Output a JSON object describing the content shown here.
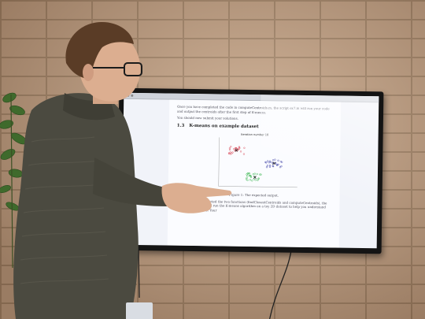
{
  "document": {
    "para_top": "Once you have completed the code in computeCentroids.m, the script ex7.m will run your code and output the centroids after the first step of K-means.",
    "para_submit": "You should now submit your solutions.",
    "section_number": "1.3",
    "section_title": "K-means on example dataset",
    "figure_caption": "Figure 1: The expected output.",
    "para_bottom": "After you have completed the two functions (findClosestCentroids and computeCentroids), the next step in ex7.m will run the K-means algorithm on a toy 2D dataset to help you understand how K-means works. Your"
  },
  "plot": {
    "title": "Iteration number 10",
    "cluster_colors": [
      "#d9414f",
      "#2c2f9e",
      "#33b44a"
    ]
  },
  "colors": {
    "brick": "#c2a185",
    "mortar": "#9e8166",
    "sweater": "#4b4a40",
    "skin": "#dcae90",
    "hair": "#5a3c26"
  }
}
